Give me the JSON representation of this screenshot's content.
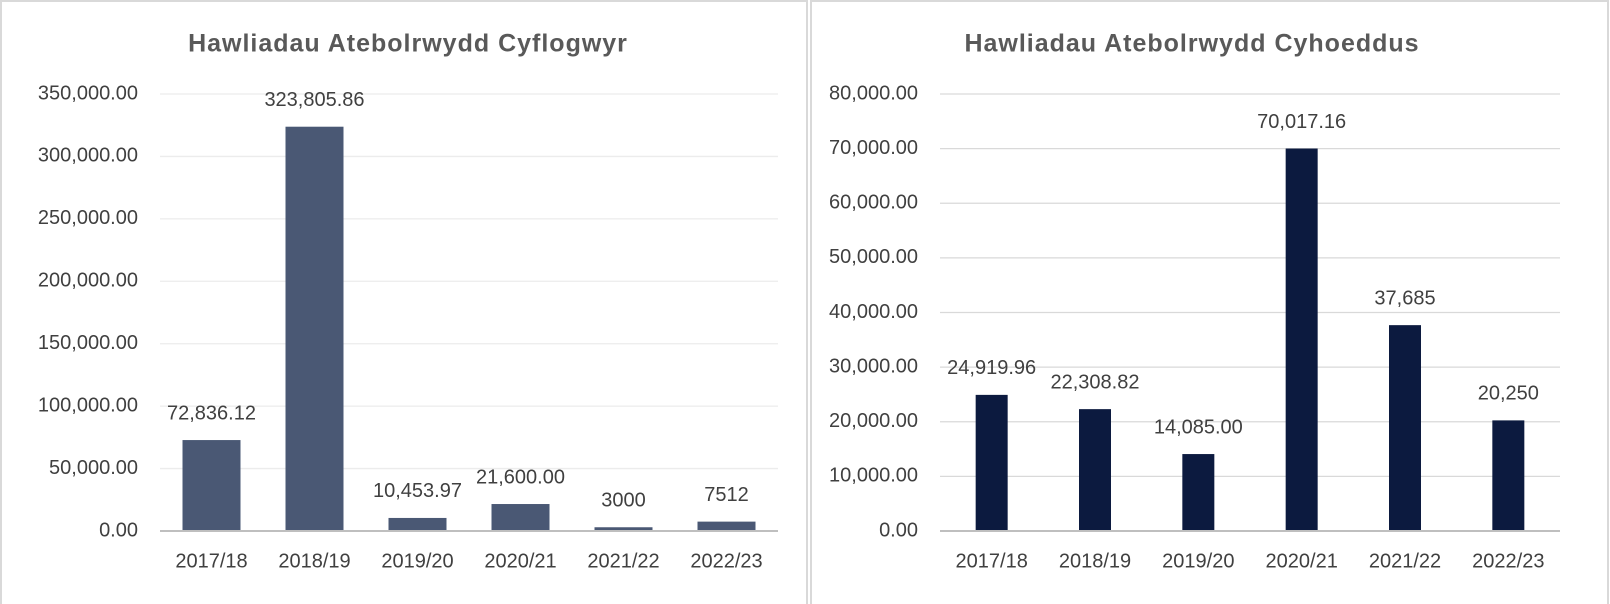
{
  "chart_data": [
    {
      "type": "bar",
      "title": "Hawliadau Atebolrwydd Cyflogwyr",
      "categories": [
        "2017/18",
        "2018/19",
        "2019/20",
        "2020/21",
        "2021/22",
        "2022/23"
      ],
      "values": [
        72836.12,
        323805.86,
        10453.97,
        21600,
        3000,
        7512
      ],
      "value_labels": [
        "72,836.12",
        "323,805.86",
        "10,453.97",
        "21,600.00",
        "3000",
        "7512"
      ],
      "color": "#4a5874",
      "ylim": [
        0,
        350000
      ],
      "yticks": [
        {
          "value": 0,
          "label": "0.00"
        },
        {
          "value": 50000,
          "label": "50,000.00"
        },
        {
          "value": 100000,
          "label": "100,000.00"
        },
        {
          "value": 150000,
          "label": "150,000.00"
        },
        {
          "value": 200000,
          "label": "200,000.00"
        },
        {
          "value": 250000,
          "label": "250,000.00"
        },
        {
          "value": 300000,
          "label": "300,000.00"
        },
        {
          "value": 350000,
          "label": "350,000.00"
        }
      ],
      "grid": true
    },
    {
      "type": "bar",
      "title": "Hawliadau Atebolrwydd Cyhoeddus",
      "categories": [
        "2017/18",
        "2018/19",
        "2019/20",
        "2020/21",
        "2021/22",
        "2022/23"
      ],
      "values": [
        24919.96,
        22308.82,
        14085,
        70017.16,
        37685,
        20250
      ],
      "value_labels": [
        "24,919.96",
        "22,308.82",
        "14,085.00",
        "70,017.16",
        "37,685",
        "20,250"
      ],
      "color": "#0c1a3f",
      "ylim": [
        0,
        80000
      ],
      "yticks": [
        {
          "value": 0,
          "label": "0.00"
        },
        {
          "value": 10000,
          "label": "10,000.00"
        },
        {
          "value": 20000,
          "label": "20,000.00"
        },
        {
          "value": 30000,
          "label": "30,000.00"
        },
        {
          "value": 40000,
          "label": "40,000.00"
        },
        {
          "value": 50000,
          "label": "50,000.00"
        },
        {
          "value": 60000,
          "label": "60,000.00"
        },
        {
          "value": 70000,
          "label": "70,000.00"
        },
        {
          "value": 80000,
          "label": "80,000.00"
        }
      ],
      "grid": true
    }
  ]
}
